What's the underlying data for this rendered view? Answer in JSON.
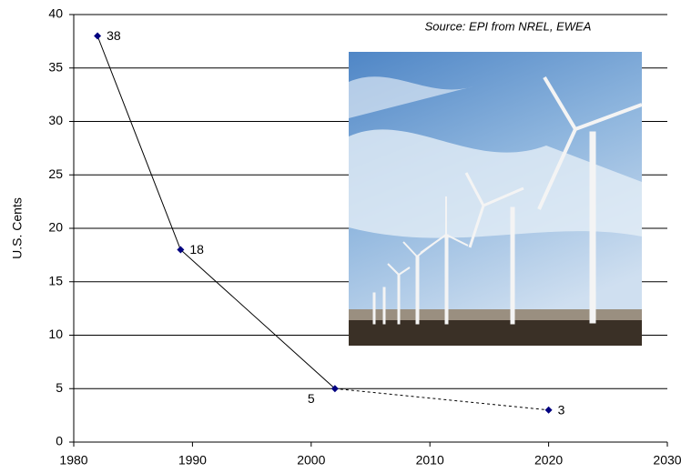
{
  "chart_data": {
    "type": "line",
    "annotation": "Source: EPI from NREL, EWEA",
    "ylabel": "U.S. Cents",
    "x": [
      1982,
      1989,
      2002,
      2020
    ],
    "values": [
      38,
      18,
      5,
      3
    ],
    "segment_styles": [
      "solid",
      "solid",
      "dashed"
    ],
    "color": "#000080",
    "line_color": "#000000",
    "xlim": [
      1980,
      2030
    ],
    "xticks": [
      1980,
      1990,
      2000,
      2010,
      2020,
      2030
    ],
    "ylim": [
      0,
      40
    ],
    "yticks": [
      0,
      5,
      10,
      15,
      20,
      25,
      30,
      35,
      40
    ],
    "grid": true
  }
}
